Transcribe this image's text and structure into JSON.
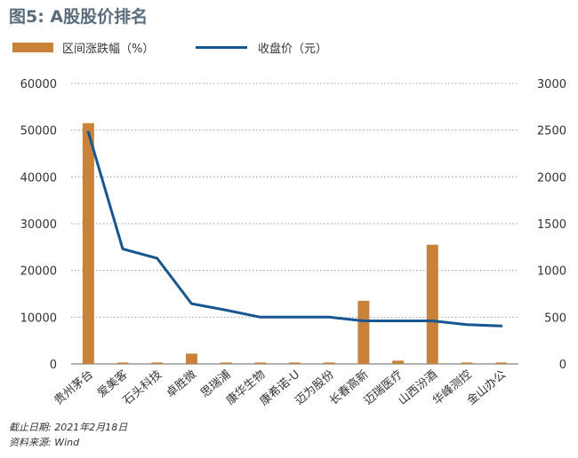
{
  "title": "图5: A股股价排名",
  "legend": {
    "bar_label": "区间涨跌幅（%）",
    "line_label": "收盘价（元）"
  },
  "footer": {
    "date_note": "截止日期: 2021年2月18日",
    "source_note": "资料来源: Wind"
  },
  "colors": {
    "bar": "#c8823a",
    "line": "#17568f",
    "grid": "#9a9a9a",
    "title": "#5a6b7b"
  },
  "chart_data": {
    "type": "bar",
    "categories": [
      "贵州茅台",
      "爱美客",
      "石头科技",
      "卓胜微",
      "思瑞浦",
      "康华生物",
      "康希诺-U",
      "迈为股份",
      "长春高新",
      "迈瑞医疗",
      "山西汾酒",
      "华峰测控",
      "金山办公"
    ],
    "series": [
      {
        "name": "区间涨跌幅（%）",
        "type": "bar",
        "axis": "left",
        "values": [
          51500,
          300,
          300,
          2200,
          300,
          300,
          300,
          300,
          13500,
          700,
          25500,
          300,
          300
        ]
      },
      {
        "name": "收盘价（元）",
        "type": "line",
        "axis": "right",
        "values": [
          2480,
          1230,
          1130,
          645,
          575,
          500,
          500,
          500,
          460,
          460,
          460,
          420,
          405
        ]
      }
    ],
    "yleft": {
      "lim": [
        0,
        60000
      ],
      "ticks": [
        0,
        10000,
        20000,
        30000,
        40000,
        50000,
        60000
      ]
    },
    "yright": {
      "lim": [
        0,
        3000
      ],
      "ticks": [
        0,
        500,
        1000,
        1500,
        2000,
        2500,
        3000
      ]
    },
    "grid": "horizontal-dotted",
    "legend_position": "top-left"
  }
}
